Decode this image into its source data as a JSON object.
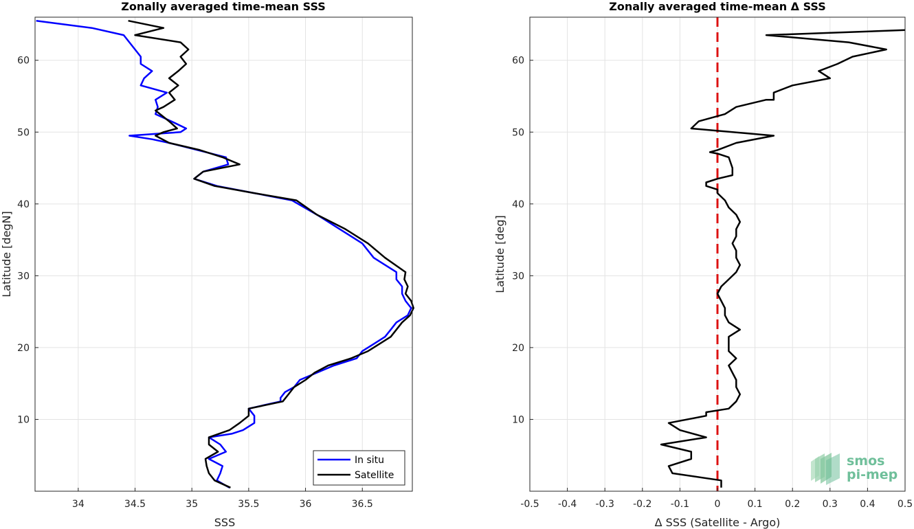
{
  "chart_data": [
    {
      "type": "line",
      "title": "Zonally averaged time-mean SSS",
      "xlabel": "SSS",
      "ylabel": "Latitude [degN]",
      "xlim": [
        33.62,
        36.94
      ],
      "ylim": [
        0,
        66
      ],
      "xticks": [
        "34",
        "34.5",
        "35",
        "35.5",
        "36",
        "36.5"
      ],
      "yticks": [
        "10",
        "20",
        "30",
        "40",
        "50",
        "60"
      ],
      "grid": true,
      "legend_position": "bottom-right",
      "series": [
        {
          "name": "In situ",
          "color": "#0000ff",
          "points": [
            [
              33.63,
              65.5
            ],
            [
              34.12,
              64.5
            ],
            [
              34.4,
              63.5
            ],
            [
              34.45,
              62.5
            ],
            [
              34.5,
              61.5
            ],
            [
              34.55,
              60.5
            ],
            [
              34.55,
              59.5
            ],
            [
              34.65,
              58.5
            ],
            [
              34.58,
              57.5
            ],
            [
              34.55,
              56.5
            ],
            [
              34.78,
              55.5
            ],
            [
              34.68,
              54.5
            ],
            [
              34.7,
              53.5
            ],
            [
              34.68,
              52.5
            ],
            [
              34.82,
              51.5
            ],
            [
              34.95,
              50.5
            ],
            [
              34.9,
              50
            ],
            [
              34.45,
              49.5
            ],
            [
              34.65,
              49
            ],
            [
              34.8,
              48.5
            ],
            [
              35.05,
              47.5
            ],
            [
              35.3,
              46.5
            ],
            [
              35.32,
              45.5
            ],
            [
              35.1,
              44.5
            ],
            [
              35.02,
              43.5
            ],
            [
              35.22,
              42.5
            ],
            [
              35.55,
              41.5
            ],
            [
              35.88,
              40.5
            ],
            [
              36.1,
              38.5
            ],
            [
              36.3,
              36.5
            ],
            [
              36.5,
              34.5
            ],
            [
              36.6,
              32.5
            ],
            [
              36.8,
              30.5
            ],
            [
              36.8,
              29.5
            ],
            [
              36.85,
              28.5
            ],
            [
              36.85,
              27.5
            ],
            [
              36.88,
              26.5
            ],
            [
              36.93,
              25.5
            ],
            [
              36.9,
              24.5
            ],
            [
              36.8,
              23.5
            ],
            [
              36.75,
              22.5
            ],
            [
              36.7,
              21.5
            ],
            [
              36.6,
              20.5
            ],
            [
              36.5,
              19.5
            ],
            [
              36.45,
              18.5
            ],
            [
              36.25,
              17.5
            ],
            [
              36.1,
              16.5
            ],
            [
              35.95,
              15.5
            ],
            [
              35.9,
              14.5
            ],
            [
              35.82,
              13.8
            ],
            [
              35.78,
              13
            ],
            [
              35.78,
              12.5
            ],
            [
              35.5,
              11.5
            ],
            [
              35.55,
              10.5
            ],
            [
              35.55,
              9.5
            ],
            [
              35.45,
              8.5
            ],
            [
              35.35,
              8
            ],
            [
              35.15,
              7.5
            ],
            [
              35.25,
              6.5
            ],
            [
              35.3,
              5.5
            ],
            [
              35.15,
              4.5
            ],
            [
              35.27,
              3.5
            ],
            [
              35.25,
              2.5
            ],
            [
              35.22,
              1.5
            ],
            [
              35.33,
              0.5
            ]
          ]
        },
        {
          "name": "Satellite",
          "color": "#000000",
          "points": [
            [
              34.44,
              65.5
            ],
            [
              34.75,
              64.5
            ],
            [
              34.5,
              63.5
            ],
            [
              34.9,
              62.5
            ],
            [
              34.97,
              61.5
            ],
            [
              34.9,
              60.5
            ],
            [
              34.95,
              59.5
            ],
            [
              34.88,
              58.5
            ],
            [
              34.8,
              57.5
            ],
            [
              34.88,
              56.5
            ],
            [
              34.8,
              55.5
            ],
            [
              34.85,
              54.5
            ],
            [
              34.75,
              53.5
            ],
            [
              34.68,
              53
            ],
            [
              34.72,
              52.5
            ],
            [
              34.8,
              51.5
            ],
            [
              34.87,
              50.5
            ],
            [
              34.75,
              50
            ],
            [
              34.68,
              49.5
            ],
            [
              34.8,
              48.5
            ],
            [
              35.07,
              47.5
            ],
            [
              35.27,
              46.5
            ],
            [
              35.42,
              45.5
            ],
            [
              35.1,
              44.5
            ],
            [
              35.02,
              43.5
            ],
            [
              35.2,
              42.5
            ],
            [
              35.55,
              41.5
            ],
            [
              35.92,
              40.5
            ],
            [
              36.1,
              38.5
            ],
            [
              36.35,
              36.5
            ],
            [
              36.55,
              34.5
            ],
            [
              36.7,
              32.5
            ],
            [
              36.88,
              30.5
            ],
            [
              36.87,
              29.5
            ],
            [
              36.9,
              28.5
            ],
            [
              36.88,
              27.5
            ],
            [
              36.93,
              26.5
            ],
            [
              36.95,
              25.5
            ],
            [
              36.92,
              24.5
            ],
            [
              36.85,
              23.5
            ],
            [
              36.8,
              22.5
            ],
            [
              36.75,
              21.5
            ],
            [
              36.65,
              20.5
            ],
            [
              36.55,
              19.5
            ],
            [
              36.4,
              18.5
            ],
            [
              36.2,
              17.5
            ],
            [
              36.08,
              16.5
            ],
            [
              36.0,
              15.5
            ],
            [
              35.9,
              14.5
            ],
            [
              35.85,
              13.5
            ],
            [
              35.8,
              12.5
            ],
            [
              35.5,
              11.5
            ],
            [
              35.5,
              10.5
            ],
            [
              35.42,
              9.5
            ],
            [
              35.33,
              8.5
            ],
            [
              35.15,
              7.5
            ],
            [
              35.15,
              6.5
            ],
            [
              35.23,
              5.5
            ],
            [
              35.12,
              4.5
            ],
            [
              35.13,
              3.5
            ],
            [
              35.15,
              2.5
            ],
            [
              35.2,
              1.5
            ],
            [
              35.34,
              0.5
            ]
          ]
        }
      ]
    },
    {
      "type": "line",
      "title": "Zonally averaged time-mean Δ SSS",
      "xlabel": "Δ SSS (Satellite - Argo)",
      "ylabel": "Latitude [deg]",
      "xlim": [
        -0.5,
        0.5
      ],
      "ylim": [
        0,
        66
      ],
      "xticks": [
        "-0.5",
        "-0.4",
        "-0.3",
        "-0.2",
        "-0.1",
        "0",
        "0.1",
        "0.2",
        "0.3",
        "0.4",
        "0.5"
      ],
      "yticks": [
        "10",
        "20",
        "30",
        "40",
        "50",
        "60"
      ],
      "grid": true,
      "reference_line": {
        "x": 0,
        "color": "#dd1111",
        "style": "dashed"
      },
      "series": [
        {
          "color": "#000000",
          "points": [
            [
              0.5,
              64.2
            ],
            [
              0.13,
              63.5
            ],
            [
              0.35,
              62.5
            ],
            [
              0.45,
              61.5
            ],
            [
              0.36,
              60.5
            ],
            [
              0.32,
              59.5
            ],
            [
              0.27,
              58.5
            ],
            [
              0.3,
              57.5
            ],
            [
              0.2,
              56.5
            ],
            [
              0.15,
              55.5
            ],
            [
              0.15,
              54.5
            ],
            [
              0.13,
              54.5
            ],
            [
              0.05,
              53.5
            ],
            [
              0.02,
              52.5
            ],
            [
              -0.05,
              51.5
            ],
            [
              -0.07,
              50.5
            ],
            [
              0.15,
              49.5
            ],
            [
              0.05,
              48.5
            ],
            [
              0.0,
              47.5
            ],
            [
              -0.02,
              47.2
            ],
            [
              0.0,
              47
            ],
            [
              0.03,
              46.5
            ],
            [
              0.04,
              45
            ],
            [
              0.04,
              44
            ],
            [
              0.0,
              43.5
            ],
            [
              -0.03,
              43
            ],
            [
              -0.03,
              42.5
            ],
            [
              0.0,
              42
            ],
            [
              0.0,
              41.5
            ],
            [
              0.02,
              40.5
            ],
            [
              0.03,
              39.5
            ],
            [
              0.05,
              38.5
            ],
            [
              0.06,
              37.5
            ],
            [
              0.05,
              36.5
            ],
            [
              0.05,
              35.5
            ],
            [
              0.04,
              34.5
            ],
            [
              0.05,
              33.5
            ],
            [
              0.05,
              32.5
            ],
            [
              0.06,
              31.5
            ],
            [
              0.05,
              30.5
            ],
            [
              0.03,
              29.5
            ],
            [
              0.01,
              28.5
            ],
            [
              0.0,
              27.5
            ],
            [
              0.01,
              26.5
            ],
            [
              0.02,
              25.5
            ],
            [
              0.02,
              24.5
            ],
            [
              0.03,
              23.5
            ],
            [
              0.06,
              22.5
            ],
            [
              0.03,
              21.5
            ],
            [
              0.03,
              20.5
            ],
            [
              0.03,
              19.5
            ],
            [
              0.05,
              18.5
            ],
            [
              0.03,
              17.5
            ],
            [
              0.04,
              16.5
            ],
            [
              0.05,
              15.5
            ],
            [
              0.05,
              14.5
            ],
            [
              0.06,
              13.5
            ],
            [
              0.05,
              12.5
            ],
            [
              0.03,
              11.5
            ],
            [
              -0.03,
              11
            ],
            [
              -0.03,
              10.5
            ],
            [
              -0.13,
              9.5
            ],
            [
              -0.1,
              8.5
            ],
            [
              -0.03,
              7.5
            ],
            [
              -0.15,
              6.5
            ],
            [
              -0.07,
              5.5
            ],
            [
              -0.07,
              4.5
            ],
            [
              -0.13,
              3.5
            ],
            [
              -0.12,
              2.5
            ],
            [
              0.01,
              1.5
            ],
            [
              0.01,
              0.5
            ]
          ]
        }
      ]
    }
  ],
  "legend": {
    "items": [
      {
        "label": "In situ",
        "color": "#0000ff"
      },
      {
        "label": "Satellite",
        "color": "#000000"
      }
    ]
  },
  "logo": {
    "line1": "smos",
    "line2": "pi-mep"
  }
}
